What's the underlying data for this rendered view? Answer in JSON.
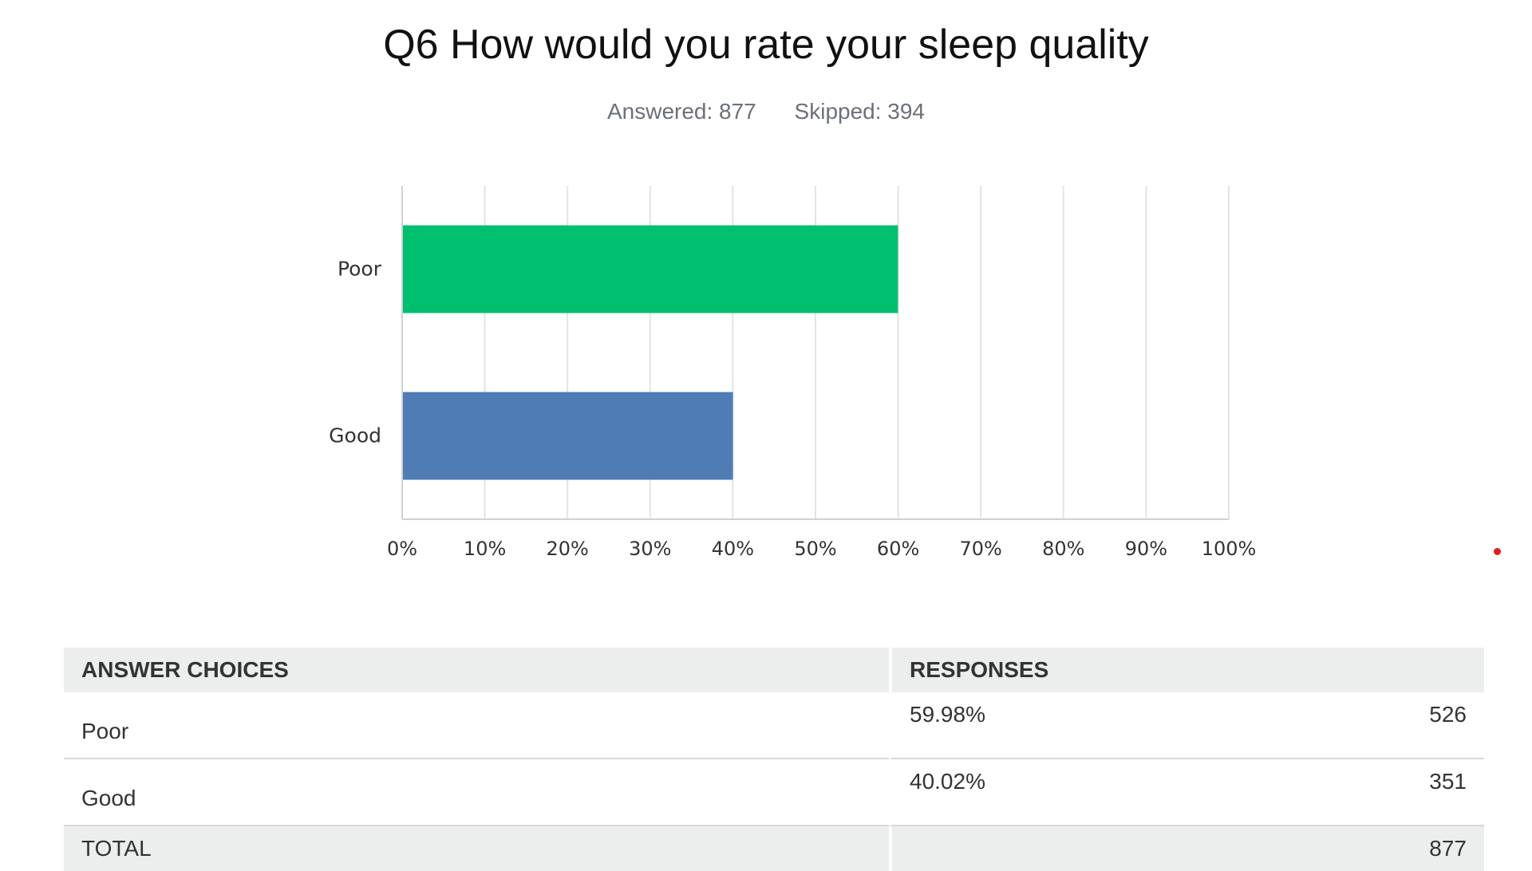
{
  "title": "Q6 How would you rate your sleep quality",
  "stats": {
    "answered": "Answered: 877",
    "skipped": "Skipped: 394"
  },
  "chart_data": {
    "type": "bar",
    "orientation": "horizontal",
    "categories": [
      "Poor",
      "Good"
    ],
    "values": [
      59.98,
      40.02
    ],
    "colors": [
      "#00bf6f",
      "#507cb6"
    ],
    "xlim": [
      0,
      100
    ],
    "x_ticks": [
      "0%",
      "10%",
      "20%",
      "30%",
      "40%",
      "50%",
      "60%",
      "70%",
      "80%",
      "90%",
      "100%"
    ],
    "grid": true
  },
  "table": {
    "headers": [
      "ANSWER CHOICES",
      "RESPONSES"
    ],
    "rows": [
      {
        "choice": "Poor",
        "percent": "59.98%",
        "count": "526"
      },
      {
        "choice": "Good",
        "percent": "40.02%",
        "count": "351"
      }
    ],
    "total_label": "TOTAL",
    "total_count": "877"
  }
}
